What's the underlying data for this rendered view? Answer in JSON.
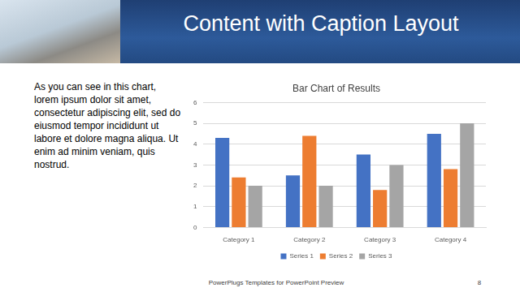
{
  "slide": {
    "title": "Content with Caption Layout",
    "caption": "As you can see in this chart, lorem ipsum dolor sit amet, consectetur adipiscing elit, sed do eiusmod tempor incididunt ut labore et dolore magna aliqua. Ut enim ad minim veniam, quis nostrud.",
    "footer": "PowerPlugs Templates for PowerPoint Preview",
    "page": 8
  },
  "chart_data": {
    "type": "bar",
    "title": "Bar Chart of Results",
    "categories": [
      "Category 1",
      "Category 2",
      "Category 3",
      "Category 4"
    ],
    "series": [
      {
        "name": "Series 1",
        "color": "#4472c4",
        "values": [
          4.3,
          2.5,
          3.5,
          4.5
        ]
      },
      {
        "name": "Series 2",
        "color": "#ed7d31",
        "values": [
          2.4,
          4.4,
          1.8,
          2.8
        ]
      },
      {
        "name": "Series 3",
        "color": "#a5a5a5",
        "values": [
          2,
          2,
          3,
          5
        ]
      }
    ],
    "ylim": [
      0,
      6
    ],
    "yticks": [
      0,
      1,
      2,
      3,
      4,
      5,
      6
    ],
    "grid": true,
    "legend": "bottom"
  }
}
